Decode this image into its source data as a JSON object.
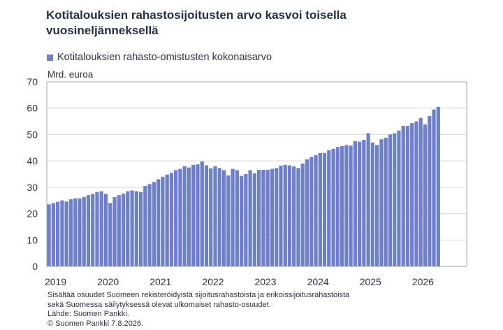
{
  "chart_data": {
    "type": "bar",
    "title": "Kotitalouksien rahastosijoitusten arvo kasvoi toisella vuosineljänneksellä",
    "xlabel": "",
    "ylabel": "Mrd. euroa",
    "ylim": [
      0,
      70
    ],
    "yticks": [
      0,
      10,
      20,
      30,
      40,
      50,
      60,
      70
    ],
    "xlim": [
      "2019-01",
      "2026-12"
    ],
    "xticks": [
      "2019",
      "2020",
      "2021",
      "2022",
      "2023",
      "2024",
      "2025",
      "2026"
    ],
    "grid": "horizontal",
    "legend": "top-left",
    "series": [
      {
        "name": "Kotitalouksien rahasto-omistusten kokonaisarvo",
        "color": "#6f80c6",
        "x": [
          "2019-01",
          "2019-02",
          "2019-03",
          "2019-04",
          "2019-05",
          "2019-06",
          "2019-07",
          "2019-08",
          "2019-09",
          "2019-10",
          "2019-11",
          "2019-12",
          "2020-01",
          "2020-02",
          "2020-03",
          "2020-04",
          "2020-05",
          "2020-06",
          "2020-07",
          "2020-08",
          "2020-09",
          "2020-10",
          "2020-11",
          "2020-12",
          "2021-01",
          "2021-02",
          "2021-03",
          "2021-04",
          "2021-05",
          "2021-06",
          "2021-07",
          "2021-08",
          "2021-09",
          "2021-10",
          "2021-11",
          "2021-12",
          "2022-01",
          "2022-02",
          "2022-03",
          "2022-04",
          "2022-05",
          "2022-06",
          "2022-07",
          "2022-08",
          "2022-09",
          "2022-10",
          "2022-11",
          "2022-12",
          "2023-01",
          "2023-02",
          "2023-03",
          "2023-04",
          "2023-05",
          "2023-06",
          "2023-07",
          "2023-08",
          "2023-09",
          "2023-10",
          "2023-11",
          "2023-12",
          "2024-01",
          "2024-02",
          "2024-03",
          "2024-04",
          "2024-05",
          "2024-06",
          "2024-07",
          "2024-08",
          "2024-09",
          "2024-10",
          "2024-11",
          "2024-12",
          "2025-01",
          "2025-02",
          "2025-03",
          "2025-04",
          "2025-05",
          "2025-06",
          "2025-07",
          "2025-08",
          "2025-09",
          "2025-10",
          "2025-11",
          "2025-12",
          "2026-01",
          "2026-02",
          "2026-03",
          "2026-04",
          "2026-05",
          "2026-06"
        ],
        "values": [
          23.5,
          24.0,
          24.5,
          25.0,
          24.6,
          25.5,
          25.8,
          25.8,
          26.3,
          27.0,
          27.5,
          28.2,
          28.5,
          27.5,
          24.0,
          26.3,
          27.0,
          27.6,
          28.5,
          28.8,
          28.5,
          28.2,
          30.5,
          31.2,
          32.0,
          33.0,
          34.0,
          34.8,
          35.5,
          36.5,
          37.0,
          38.0,
          37.5,
          38.5,
          38.7,
          39.8,
          38.3,
          37.2,
          38.0,
          37.3,
          36.5,
          34.5,
          37.0,
          36.5,
          34.3,
          35.0,
          36.5,
          35.3,
          36.6,
          36.6,
          36.6,
          37.0,
          37.3,
          38.2,
          38.5,
          38.3,
          37.9,
          37.3,
          39.0,
          40.6,
          41.5,
          42.2,
          43.0,
          43.0,
          44.0,
          44.6,
          45.3,
          45.6,
          46.0,
          45.8,
          47.5,
          47.3,
          48.0,
          50.5,
          47.0,
          46.0,
          48.2,
          48.8,
          50.0,
          50.5,
          51.5,
          53.3,
          53.3,
          54.3,
          55.0,
          56.3,
          53.8,
          57.0,
          59.5,
          60.5
        ]
      }
    ],
    "colors": {
      "grid": "#d9d9d9",
      "axis": "#a6a6a6"
    }
  },
  "footer": {
    "notes": [
      "Sisältää osuudet Suomeen rekisteröidyistä sijoitusrahastoista ja erikoissijoitusrahastoista",
      "sekä Suomessa säilytyksessä olevat ulkomaiset rahasto-osuudet."
    ],
    "source": "Lähde: Suomen Pankki.",
    "copyright": "© Suomen Pankki 7.8.2026."
  }
}
